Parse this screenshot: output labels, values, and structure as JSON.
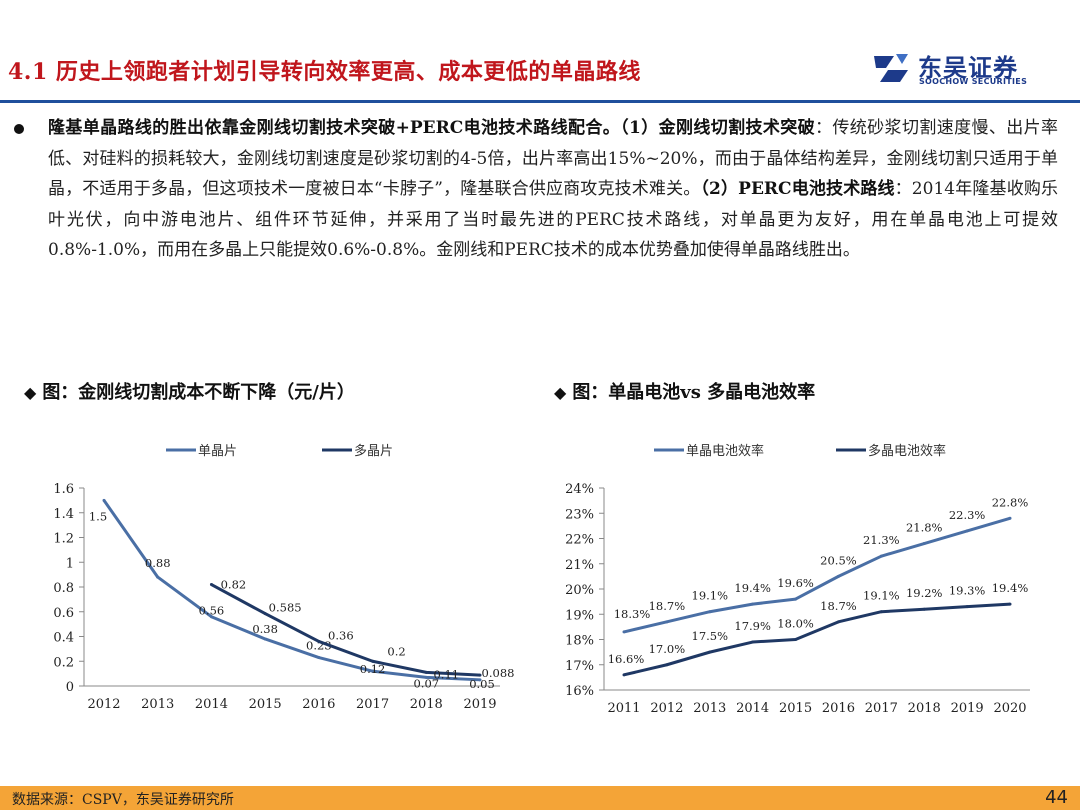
{
  "header": {
    "title": "4.1 历史上领跑者计划引导转向效率更高、成本更低的单晶路线",
    "brand_cn": "东吴证券",
    "brand_en": "SOOCHOW SECURITIES"
  },
  "colors": {
    "title_red": "#c0161c",
    "navy": "#1f3864",
    "steel": "#4a6fa5",
    "rule_blue": "#1f4f9c",
    "footer": "#f4a437"
  },
  "body": {
    "bold1": "隆基单晶路线的胜出依靠金刚线切割技术突破+PERC电池技术路线配合。（1）金刚线切割技术突破",
    "text1": "：传统砂浆切割速度慢、出片率低、对硅料的损耗较大，金刚线切割速度是砂浆切割的4-5倍，出片率高出15%~20%，而由于晶体结构差异，金刚线切割只适用于单晶，不适用于多晶，但这项技术一度被日本“卡脖子”，隆基联合供应商攻克技术难关。",
    "bold2": "（2）PERC电池技术路线",
    "text2": "：2014年隆基收购乐叶光伏，向中游电池片、组件环节延伸，并采用了当时最先进的PERC技术路线，对单晶更为友好，用在单晶电池上可提效0.8%-1.0%，而用在多晶上只能提效0.6%-0.8%。金刚线和PERC技术的成本优势叠加使得单晶路线胜出。"
  },
  "chart_data": [
    {
      "type": "line",
      "title": "图：金刚线切割成本不断下降（元/片）",
      "categories": [
        "2012",
        "2013",
        "2014",
        "2015",
        "2016",
        "2017",
        "2018",
        "2019"
      ],
      "series": [
        {
          "name": "单晶片",
          "color": "#4a6fa5",
          "values": [
            1.5,
            0.88,
            0.56,
            0.38,
            0.23,
            0.12,
            0.07,
            0.05
          ]
        },
        {
          "name": "多晶片",
          "color": "#1f3864",
          "values": [
            null,
            null,
            0.82,
            0.585,
            0.36,
            0.2,
            0.11,
            0.088
          ]
        }
      ],
      "ylim": [
        0,
        1.6
      ],
      "yticks": [
        "0",
        "0.2",
        "0.4",
        "0.6",
        "0.8",
        "1",
        "1.2",
        "1.4",
        "1.6"
      ],
      "legend": "top",
      "grid": false
    },
    {
      "type": "line",
      "title": "图：单晶电池vs 多晶电池效率",
      "categories": [
        "2011",
        "2012",
        "2013",
        "2014",
        "2015",
        "2016",
        "2017",
        "2018",
        "2019",
        "2020"
      ],
      "series": [
        {
          "name": "单晶电池效率",
          "color": "#4a6fa5",
          "values": [
            18.3,
            18.7,
            19.1,
            19.4,
            19.6,
            20.5,
            21.3,
            21.8,
            22.3,
            22.8
          ],
          "labels": [
            "18.3%",
            "18.7%",
            "19.1%",
            "19.4%",
            "19.6%",
            "20.5%",
            "21.3%",
            "21.8%",
            "22.3%",
            "22.8%"
          ]
        },
        {
          "name": "多晶电池效率",
          "color": "#1f3864",
          "values": [
            16.6,
            17.0,
            17.5,
            17.9,
            18.0,
            18.7,
            19.1,
            19.2,
            19.3,
            19.4
          ],
          "labels": [
            "16.6%",
            "17.0%",
            "17.5%",
            "17.9%",
            "18.0%",
            "18.7%",
            "19.1%",
            "19.2%",
            "19.3%",
            "19.4%"
          ]
        }
      ],
      "ylim": [
        16,
        24
      ],
      "yticks": [
        "16%",
        "17%",
        "18%",
        "19%",
        "20%",
        "21%",
        "22%",
        "23%",
        "24%"
      ],
      "legend": "top",
      "grid": false
    }
  ],
  "footer": {
    "source": "数据来源：CSPV，东吴证券研究所",
    "page": "44"
  }
}
